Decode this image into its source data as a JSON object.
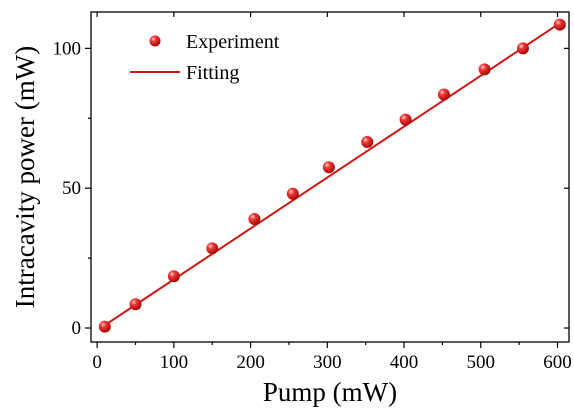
{
  "chart_data": {
    "type": "scatter",
    "title": "",
    "xlabel": "Pump (mW)",
    "ylabel": "Intracavity power (mW)",
    "xlim": [
      -8,
      615
    ],
    "ylim": [
      -5,
      113
    ],
    "xticks": [
      0,
      100,
      200,
      300,
      400,
      500,
      600
    ],
    "yticks": [
      0,
      50,
      100
    ],
    "grid": false,
    "legend_position": "top-left",
    "series": [
      {
        "name": "Experiment",
        "kind": "markers",
        "color": "#e01010",
        "x": [
          10,
          50,
          100,
          150,
          205,
          255,
          302,
          352,
          402,
          452,
          505,
          555,
          603
        ],
        "y": [
          0.5,
          8.5,
          18.5,
          28.5,
          39,
          48,
          57.5,
          66.5,
          74.5,
          83.5,
          92.5,
          100,
          108.5
        ]
      },
      {
        "name": "Fitting",
        "kind": "line",
        "color": "#d01515",
        "x": [
          10,
          603
        ],
        "y": [
          1.0,
          109.0
        ]
      }
    ]
  }
}
